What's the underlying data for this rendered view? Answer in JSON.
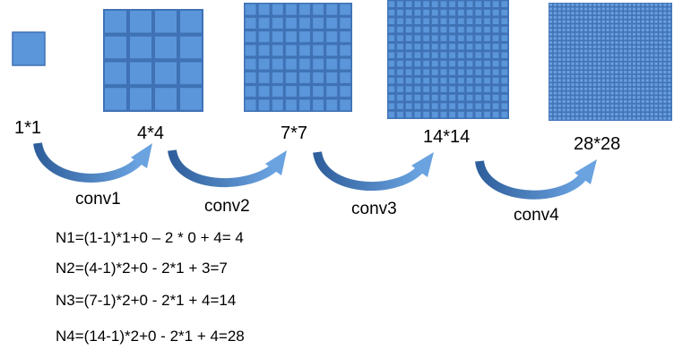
{
  "labels": [
    "1*1",
    "4*4",
    "7*7",
    "14*14",
    "28*28"
  ],
  "operations": [
    "conv1",
    "conv2",
    "conv3",
    "conv4"
  ],
  "equations": [
    "N1=(1-1)*1+0 – 2 * 0 + 4= 4",
    "N2=(4-1)*2+0 - 2*1 + 3=7",
    "N3=(7-1)*2+0 - 2*1 + 4=14",
    "N4=(14-1)*2+0 - 2*1 + 4=28"
  ]
}
